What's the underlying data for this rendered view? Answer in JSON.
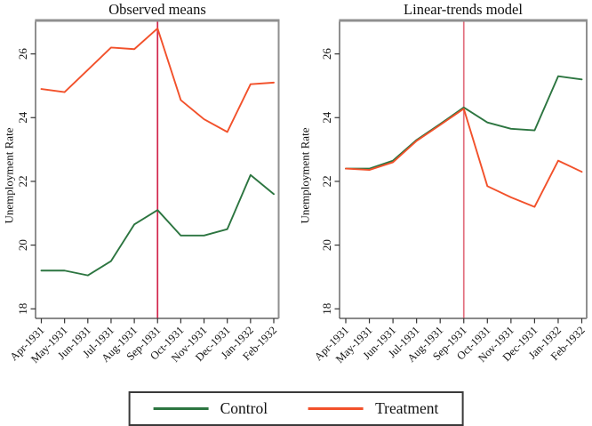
{
  "figure": {
    "legend": {
      "items": [
        {
          "label": "Control",
          "color": "#2c7540"
        },
        {
          "label": "Treatment",
          "color": "#f2512b"
        }
      ]
    }
  },
  "chart_data": [
    {
      "type": "line",
      "title": "Observed means",
      "ylabel": "Unemployment Rate",
      "x": [
        "Apr-1931",
        "May-1931",
        "Jun-1931",
        "Jul-1931",
        "Aug-1931",
        "Sep-1931",
        "Oct-1931",
        "Nov-1931",
        "Dec-1931",
        "Jan-1932",
        "Feb-1932"
      ],
      "yticks": [
        18,
        20,
        22,
        24,
        26
      ],
      "ylim": [
        17.7,
        27.05
      ],
      "grid": false,
      "vline_x": "Sep-1931",
      "vline_color": "#d2254c",
      "series": [
        {
          "name": "Control",
          "color": "#2c7540",
          "values": [
            19.2,
            19.2,
            19.05,
            19.5,
            20.65,
            21.1,
            20.3,
            20.3,
            20.5,
            22.2,
            21.6
          ]
        },
        {
          "name": "Treatment",
          "color": "#f2512b",
          "values": [
            24.9,
            24.8,
            25.5,
            26.2,
            26.15,
            26.8,
            24.55,
            23.95,
            23.55,
            25.05,
            25.1
          ]
        }
      ]
    },
    {
      "type": "line",
      "title": "Linear-trends model",
      "ylabel": "Unemployment Rate",
      "x": [
        "Apr-1931",
        "May-1931",
        "Jun-1931",
        "Jul-1931",
        "Aug-1931",
        "Sep-1931",
        "Oct-1931",
        "Nov-1931",
        "Dec-1931",
        "Jan-1932",
        "Feb-1932"
      ],
      "yticks": [
        18,
        20,
        22,
        24,
        26
      ],
      "ylim": [
        17.7,
        27.05
      ],
      "grid": false,
      "vline_x": "Sep-1931",
      "vline_color": "#e2707f",
      "series": [
        {
          "name": "Control",
          "color": "#2c7540",
          "values": [
            22.4,
            22.4,
            22.65,
            23.3,
            23.8,
            24.32,
            23.85,
            23.65,
            23.6,
            25.3,
            25.2
          ]
        },
        {
          "name": "Treatment",
          "color": "#f2512b",
          "values": [
            22.4,
            22.36,
            22.6,
            23.27,
            23.77,
            24.28,
            21.85,
            21.5,
            21.2,
            22.65,
            22.3
          ]
        }
      ]
    }
  ]
}
